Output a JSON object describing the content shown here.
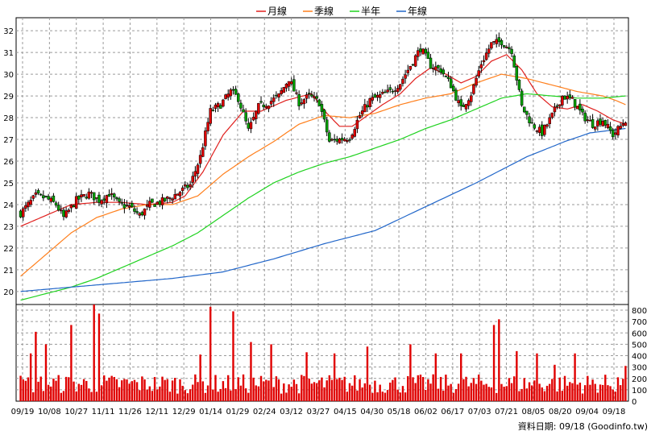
{
  "chart_data": {
    "type": "candlestick",
    "legend": [
      {
        "name": "月線",
        "color": "#e0201e"
      },
      {
        "name": "季線",
        "color": "#ff7f1c"
      },
      {
        "name": "半年",
        "color": "#1fd21f"
      },
      {
        "name": "年線",
        "color": "#2166c9"
      }
    ],
    "price_axis": {
      "range": [
        19.4,
        32.6
      ],
      "ticks": [
        20,
        21,
        22,
        23,
        24,
        25,
        26,
        27,
        28,
        29,
        30,
        31,
        32
      ],
      "position": "left"
    },
    "volume_axis": {
      "range": [
        0,
        850
      ],
      "ticks": [
        0,
        100,
        200,
        300,
        400,
        500,
        600,
        700,
        800
      ],
      "position": "right"
    },
    "x_labels": [
      "09/19",
      "10/08",
      "10/27",
      "11/11",
      "11/26",
      "12/11",
      "12/29",
      "01/14",
      "01/29",
      "02/24",
      "03/12",
      "03/27",
      "04/15",
      "04/30",
      "05/18",
      "06/02",
      "06/17",
      "07/03",
      "07/21",
      "08/05",
      "08/20",
      "09/04",
      "09/18"
    ],
    "bar_count": 240,
    "close_anchors": [
      [
        0,
        23.6
      ],
      [
        6,
        24.4
      ],
      [
        10,
        24.3
      ],
      [
        14,
        24.0
      ],
      [
        17,
        23.4
      ],
      [
        22,
        24.2
      ],
      [
        27,
        24.5
      ],
      [
        31,
        24.2
      ],
      [
        35,
        24.5
      ],
      [
        39,
        24.0
      ],
      [
        43,
        23.9
      ],
      [
        47,
        23.5
      ],
      [
        51,
        24.0
      ],
      [
        55,
        24.1
      ],
      [
        59,
        24.3
      ],
      [
        63,
        24.6
      ],
      [
        67,
        24.9
      ],
      [
        71,
        26.2
      ],
      [
        75,
        28.3
      ],
      [
        79,
        28.6
      ],
      [
        83,
        29.2
      ],
      [
        86,
        28.9
      ],
      [
        90,
        27.4
      ],
      [
        94,
        28.5
      ],
      [
        98,
        28.7
      ],
      [
        102,
        29.0
      ],
      [
        106,
        29.8
      ],
      [
        110,
        28.7
      ],
      [
        114,
        29.0
      ],
      [
        118,
        28.7
      ],
      [
        122,
        26.9
      ],
      [
        126,
        27.0
      ],
      [
        130,
        27.1
      ],
      [
        134,
        28.1
      ],
      [
        138,
        28.8
      ],
      [
        142,
        29.0
      ],
      [
        146,
        29.2
      ],
      [
        150,
        29.6
      ],
      [
        154,
        30.4
      ],
      [
        158,
        31.2
      ],
      [
        162,
        30.4
      ],
      [
        166,
        30.2
      ],
      [
        170,
        29.5
      ],
      [
        174,
        28.4
      ],
      [
        178,
        29.1
      ],
      [
        182,
        30.5
      ],
      [
        186,
        31.4
      ],
      [
        190,
        31.5
      ],
      [
        194,
        31.1
      ],
      [
        198,
        28.5
      ],
      [
        202,
        27.7
      ],
      [
        206,
        27.3
      ],
      [
        210,
        28.1
      ],
      [
        214,
        29.0
      ],
      [
        218,
        28.8
      ],
      [
        222,
        28.1
      ],
      [
        226,
        27.7
      ],
      [
        230,
        27.9
      ],
      [
        234,
        27.2
      ],
      [
        237,
        27.6
      ],
      [
        239,
        27.9
      ]
    ],
    "moving_averages": {
      "月線": [
        [
          0,
          23.0
        ],
        [
          10,
          23.5
        ],
        [
          20,
          24.0
        ],
        [
          30,
          24.1
        ],
        [
          40,
          24.1
        ],
        [
          50,
          24.0
        ],
        [
          60,
          24.1
        ],
        [
          65,
          24.4
        ],
        [
          72,
          25.5
        ],
        [
          80,
          27.2
        ],
        [
          88,
          28.3
        ],
        [
          95,
          28.3
        ],
        [
          105,
          28.8
        ],
        [
          115,
          29.1
        ],
        [
          121,
          28.2
        ],
        [
          126,
          27.6
        ],
        [
          131,
          27.6
        ],
        [
          137,
          28.1
        ],
        [
          143,
          28.6
        ],
        [
          150,
          29.1
        ],
        [
          156,
          29.8
        ],
        [
          162,
          30.3
        ],
        [
          168,
          30.0
        ],
        [
          174,
          29.6
        ],
        [
          180,
          29.9
        ],
        [
          186,
          30.6
        ],
        [
          192,
          30.9
        ],
        [
          198,
          30.2
        ],
        [
          204,
          29.1
        ],
        [
          210,
          28.5
        ],
        [
          216,
          28.4
        ],
        [
          222,
          28.6
        ],
        [
          228,
          28.3
        ],
        [
          234,
          27.9
        ],
        [
          239,
          27.7
        ]
      ],
      "季線": [
        [
          0,
          20.7
        ],
        [
          10,
          21.7
        ],
        [
          20,
          22.7
        ],
        [
          30,
          23.4
        ],
        [
          40,
          23.8
        ],
        [
          50,
          24.0
        ],
        [
          60,
          24.0
        ],
        [
          70,
          24.4
        ],
        [
          80,
          25.4
        ],
        [
          90,
          26.2
        ],
        [
          100,
          26.9
        ],
        [
          110,
          27.7
        ],
        [
          120,
          28.1
        ],
        [
          130,
          28.0
        ],
        [
          140,
          28.2
        ],
        [
          150,
          28.6
        ],
        [
          160,
          28.9
        ],
        [
          170,
          29.1
        ],
        [
          180,
          29.6
        ],
        [
          190,
          30.0
        ],
        [
          200,
          29.8
        ],
        [
          210,
          29.5
        ],
        [
          220,
          29.2
        ],
        [
          230,
          29.0
        ],
        [
          235,
          28.8
        ],
        [
          239,
          28.6
        ]
      ],
      "半年": [
        [
          0,
          19.6
        ],
        [
          10,
          19.9
        ],
        [
          20,
          20.2
        ],
        [
          30,
          20.6
        ],
        [
          40,
          21.1
        ],
        [
          50,
          21.6
        ],
        [
          60,
          22.1
        ],
        [
          70,
          22.7
        ],
        [
          80,
          23.5
        ],
        [
          90,
          24.3
        ],
        [
          100,
          25.0
        ],
        [
          110,
          25.5
        ],
        [
          120,
          25.9
        ],
        [
          130,
          26.2
        ],
        [
          140,
          26.6
        ],
        [
          150,
          27.0
        ],
        [
          160,
          27.5
        ],
        [
          170,
          27.9
        ],
        [
          180,
          28.4
        ],
        [
          190,
          28.9
        ],
        [
          200,
          29.1
        ],
        [
          210,
          29.0
        ],
        [
          220,
          28.9
        ],
        [
          230,
          28.9
        ],
        [
          239,
          29.0
        ]
      ],
      "年線": [
        [
          0,
          20.0
        ],
        [
          20,
          20.2
        ],
        [
          40,
          20.4
        ],
        [
          60,
          20.6
        ],
        [
          80,
          20.9
        ],
        [
          100,
          21.5
        ],
        [
          120,
          22.2
        ],
        [
          140,
          22.8
        ],
        [
          160,
          23.9
        ],
        [
          180,
          25.0
        ],
        [
          200,
          26.2
        ],
        [
          215,
          26.9
        ],
        [
          225,
          27.3
        ],
        [
          239,
          27.5
        ]
      ]
    },
    "volume_peaks": [
      [
        4,
        420
      ],
      [
        6,
        610
      ],
      [
        10,
        500
      ],
      [
        20,
        670
      ],
      [
        29,
        850
      ],
      [
        31,
        770
      ],
      [
        71,
        410
      ],
      [
        75,
        830
      ],
      [
        84,
        790
      ],
      [
        91,
        520
      ],
      [
        99,
        500
      ],
      [
        113,
        430
      ],
      [
        124,
        420
      ],
      [
        137,
        480
      ],
      [
        154,
        500
      ],
      [
        164,
        420
      ],
      [
        174,
        420
      ],
      [
        187,
        670
      ],
      [
        189,
        720
      ],
      [
        196,
        440
      ],
      [
        204,
        420
      ],
      [
        211,
        320
      ],
      [
        219,
        420
      ],
      [
        236,
        210
      ],
      [
        239,
        310
      ]
    ],
    "volume_baseline": 190
  },
  "footer": {
    "source": "資料日期: 09/18  (Goodinfo.tw)"
  }
}
